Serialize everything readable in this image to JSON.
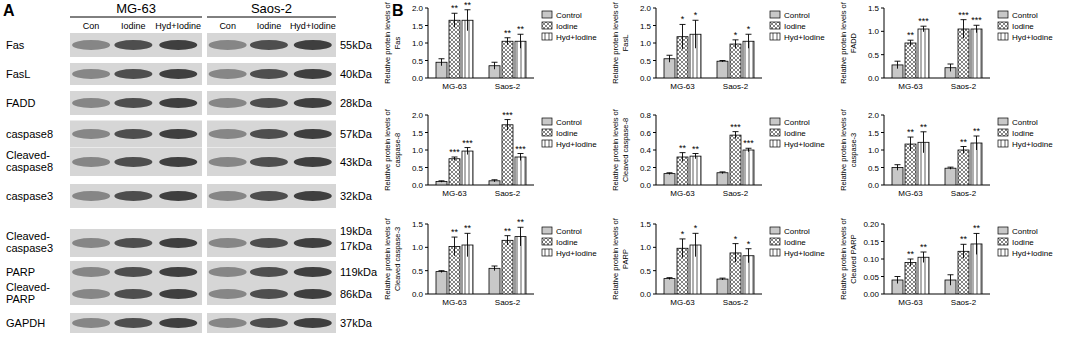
{
  "panel_labels": [
    "A",
    "B"
  ],
  "blot": {
    "cell_lines": [
      "MG-63",
      "Saos-2"
    ],
    "lanes": [
      "Con",
      "Iodine",
      "Hyd+Iodine"
    ],
    "rows": [
      {
        "label": [
          "Fas"
        ],
        "kda": [
          "55kDa"
        ]
      },
      {
        "label": [
          "FasL"
        ],
        "kda": [
          "40kDa"
        ]
      },
      {
        "label": [
          "FADD"
        ],
        "kda": [
          "28kDa"
        ]
      },
      {
        "label": [
          "caspase8"
        ],
        "kda": [
          "57kDa"
        ]
      },
      {
        "label": [
          "Cleaved-",
          "caspase8"
        ],
        "kda": [
          "43kDa"
        ]
      },
      {
        "label": [
          "caspase3"
        ],
        "kda": [
          "32kDa"
        ]
      },
      {
        "label": [
          "Cleaved-",
          "caspase3"
        ],
        "kda": [
          "19kDa",
          "17kDa"
        ]
      },
      {
        "label": [
          "PARP"
        ],
        "kda": [
          "119kDa"
        ]
      },
      {
        "label": [
          "Cleaved-",
          "PARP"
        ],
        "kda": [
          "86kDa"
        ]
      },
      {
        "label": [
          "GAPDH"
        ],
        "kda": [
          "37kDa"
        ]
      }
    ]
  },
  "chart_data": [
    {
      "type": "bar",
      "ylabel": [
        "Relative protein levels of",
        "Fas"
      ],
      "categories": [
        "MG-63",
        "Saos-2"
      ],
      "series": [
        {
          "name": "Control",
          "color": "#c8c8c8",
          "values": [
            0.45,
            0.35
          ],
          "errors": [
            0.1,
            0.1
          ],
          "significance": [
            null,
            null
          ]
        },
        {
          "name": "Iodine",
          "color": "#ffffff",
          "values": [
            1.65,
            1.05
          ],
          "errors": [
            0.2,
            0.1
          ],
          "significance": [
            "**",
            "**"
          ]
        },
        {
          "name": "Hyd+Iodine",
          "color": "#ffffff",
          "values": [
            1.65,
            1.05
          ],
          "errors": [
            0.3,
            0.2
          ],
          "significance": [
            "**",
            "**"
          ]
        }
      ],
      "ylim": [
        0,
        2
      ],
      "yticks": [
        {
          "value": 0,
          "label": "0.0"
        },
        {
          "value": 0.5,
          "label": "0.5"
        },
        {
          "value": 1,
          "label": "1.0"
        },
        {
          "value": 1.5,
          "label": "1.5"
        },
        {
          "value": 2,
          "label": "2.0"
        }
      ],
      "legend": "right"
    },
    {
      "type": "bar",
      "ylabel": [
        "Relative protein levels of",
        "FasL"
      ],
      "categories": [
        "MG-63",
        "Saos-2"
      ],
      "series": [
        {
          "name": "Control",
          "color": "#c8c8c8",
          "values": [
            0.55,
            0.48
          ],
          "errors": [
            0.1,
            0.02
          ],
          "significance": [
            null,
            null
          ]
        },
        {
          "name": "Iodine",
          "color": "#ffffff",
          "values": [
            1.18,
            0.97
          ],
          "errors": [
            0.35,
            0.12
          ],
          "significance": [
            "*",
            "*"
          ]
        },
        {
          "name": "Hyd+Iodine",
          "color": "#ffffff",
          "values": [
            1.25,
            1.05
          ],
          "errors": [
            0.4,
            0.2
          ],
          "significance": [
            "*",
            "*"
          ]
        }
      ],
      "ylim": [
        0,
        2
      ],
      "yticks": [
        {
          "value": 0,
          "label": "0.0"
        },
        {
          "value": 0.5,
          "label": "0.5"
        },
        {
          "value": 1,
          "label": "1.0"
        },
        {
          "value": 1.5,
          "label": "1.5"
        },
        {
          "value": 2,
          "label": "2.0"
        }
      ],
      "legend": "right"
    },
    {
      "type": "bar",
      "ylabel": [
        "Relative protein levels of",
        "FADD"
      ],
      "categories": [
        "MG-63",
        "Saos-2"
      ],
      "series": [
        {
          "name": "Control",
          "color": "#c8c8c8",
          "values": [
            0.28,
            0.22
          ],
          "errors": [
            0.08,
            0.08
          ],
          "significance": [
            null,
            null
          ]
        },
        {
          "name": "Iodine",
          "color": "#ffffff",
          "values": [
            0.75,
            1.05
          ],
          "errors": [
            0.06,
            0.2
          ],
          "significance": [
            "**",
            "***"
          ]
        },
        {
          "name": "Hyd+Iodine",
          "color": "#ffffff",
          "values": [
            1.05,
            1.05
          ],
          "errors": [
            0.06,
            0.08
          ],
          "significance": [
            "***",
            "***"
          ]
        }
      ],
      "ylim": [
        0,
        1.5
      ],
      "yticks": [
        {
          "value": 0,
          "label": "0.0"
        },
        {
          "value": 0.5,
          "label": "0.5"
        },
        {
          "value": 1,
          "label": "1.0"
        },
        {
          "value": 1.5,
          "label": "1.5"
        }
      ],
      "legend": "right"
    },
    {
      "type": "bar",
      "ylabel": [
        "Relative protein levels of",
        "caspase-8"
      ],
      "categories": [
        "MG-63",
        "Saos-2"
      ],
      "series": [
        {
          "name": "Control",
          "color": "#c8c8c8",
          "values": [
            0.1,
            0.12
          ],
          "errors": [
            0.02,
            0.03
          ],
          "significance": [
            null,
            null
          ]
        },
        {
          "name": "Iodine",
          "color": "#ffffff",
          "values": [
            0.75,
            1.72
          ],
          "errors": [
            0.05,
            0.15
          ],
          "significance": [
            "***",
            "***"
          ]
        },
        {
          "name": "Hyd+Iodine",
          "color": "#ffffff",
          "values": [
            0.97,
            0.8
          ],
          "errors": [
            0.1,
            0.1
          ],
          "significance": [
            "***",
            "***"
          ]
        }
      ],
      "ylim": [
        0,
        2
      ],
      "yticks": [
        {
          "value": 0,
          "label": "0.0"
        },
        {
          "value": 0.5,
          "label": "0.5"
        },
        {
          "value": 1,
          "label": "1.0"
        },
        {
          "value": 1.5,
          "label": "1.5"
        },
        {
          "value": 2,
          "label": "2.0"
        }
      ],
      "legend": "right"
    },
    {
      "type": "bar",
      "ylabel": [
        "Relative protein levels of",
        "Cleaved caspase-8"
      ],
      "categories": [
        "MG-63",
        "Saos-2"
      ],
      "series": [
        {
          "name": "Control",
          "color": "#c8c8c8",
          "values": [
            0.13,
            0.14
          ],
          "errors": [
            0.01,
            0.01
          ],
          "significance": [
            null,
            null
          ]
        },
        {
          "name": "Iodine",
          "color": "#ffffff",
          "values": [
            0.32,
            0.57
          ],
          "errors": [
            0.05,
            0.04
          ],
          "significance": [
            "**",
            "***"
          ]
        },
        {
          "name": "Hyd+Iodine",
          "color": "#ffffff",
          "values": [
            0.33,
            0.4
          ],
          "errors": [
            0.03,
            0.02
          ],
          "significance": [
            "**",
            "***"
          ]
        }
      ],
      "ylim": [
        0,
        0.8
      ],
      "yticks": [
        {
          "value": 0,
          "label": "0.0"
        },
        {
          "value": 0.2,
          "label": "0.2"
        },
        {
          "value": 0.4,
          "label": "0.4"
        },
        {
          "value": 0.6,
          "label": "0.6"
        },
        {
          "value": 0.8,
          "label": "0.8"
        }
      ],
      "legend": "right"
    },
    {
      "type": "bar",
      "ylabel": [
        "Relative protein levels of",
        "caspase-3"
      ],
      "categories": [
        "MG-63",
        "Saos-2"
      ],
      "series": [
        {
          "name": "Control",
          "color": "#c8c8c8",
          "values": [
            0.5,
            0.48
          ],
          "errors": [
            0.08,
            0.03
          ],
          "significance": [
            null,
            null
          ]
        },
        {
          "name": "Iodine",
          "color": "#ffffff",
          "values": [
            1.17,
            1.0
          ],
          "errors": [
            0.2,
            0.1
          ],
          "significance": [
            "**",
            "**"
          ]
        },
        {
          "name": "Hyd+Iodine",
          "color": "#ffffff",
          "values": [
            1.22,
            1.2
          ],
          "errors": [
            0.3,
            0.2
          ],
          "significance": [
            "**",
            "**"
          ]
        }
      ],
      "ylim": [
        0,
        2
      ],
      "yticks": [
        {
          "value": 0,
          "label": "0.0"
        },
        {
          "value": 0.5,
          "label": "0.5"
        },
        {
          "value": 1,
          "label": "1.0"
        },
        {
          "value": 1.5,
          "label": "1.5"
        },
        {
          "value": 2,
          "label": "2.0"
        }
      ],
      "legend": "right"
    },
    {
      "type": "bar",
      "ylabel": [
        "Relative protein levels of",
        "Cleaved caspase-3"
      ],
      "categories": [
        "MG-63",
        "Saos-2"
      ],
      "series": [
        {
          "name": "Control",
          "color": "#c8c8c8",
          "values": [
            0.48,
            0.55
          ],
          "errors": [
            0.02,
            0.05
          ],
          "significance": [
            null,
            null
          ]
        },
        {
          "name": "Iodine",
          "color": "#ffffff",
          "values": [
            1.02,
            1.15
          ],
          "errors": [
            0.2,
            0.1
          ],
          "significance": [
            "**",
            "**"
          ]
        },
        {
          "name": "Hyd+Iodine",
          "color": "#ffffff",
          "values": [
            1.05,
            1.23
          ],
          "errors": [
            0.25,
            0.2
          ],
          "significance": [
            "**",
            "**"
          ]
        }
      ],
      "ylim": [
        0,
        1.5
      ],
      "yticks": [
        {
          "value": 0,
          "label": "0.0"
        },
        {
          "value": 0.5,
          "label": "0.5"
        },
        {
          "value": 1,
          "label": "1.0"
        },
        {
          "value": 1.5,
          "label": "1.5"
        }
      ],
      "legend": "right"
    },
    {
      "type": "bar",
      "ylabel": [
        "Relative protein levels of",
        "PARP"
      ],
      "categories": [
        "MG-63",
        "Saos-2"
      ],
      "series": [
        {
          "name": "Control",
          "color": "#c8c8c8",
          "values": [
            0.33,
            0.32
          ],
          "errors": [
            0.02,
            0.02
          ],
          "significance": [
            null,
            null
          ]
        },
        {
          "name": "Iodine",
          "color": "#ffffff",
          "values": [
            0.98,
            0.88
          ],
          "errors": [
            0.2,
            0.2
          ],
          "significance": [
            "*",
            "*"
          ]
        },
        {
          "name": "Hyd+Iodine",
          "color": "#ffffff",
          "values": [
            1.05,
            0.82
          ],
          "errors": [
            0.25,
            0.15
          ],
          "significance": [
            "*",
            "*"
          ]
        }
      ],
      "ylim": [
        0,
        1.5
      ],
      "yticks": [
        {
          "value": 0,
          "label": "0.0"
        },
        {
          "value": 0.5,
          "label": "0.5"
        },
        {
          "value": 1,
          "label": "1.0"
        },
        {
          "value": 1.5,
          "label": "1.5"
        }
      ],
      "legend": "right"
    },
    {
      "type": "bar",
      "ylabel": [
        "Relative protein levels of",
        "Cleaved PARP"
      ],
      "categories": [
        "MG-63",
        "Saos-2"
      ],
      "series": [
        {
          "name": "Control",
          "color": "#c8c8c8",
          "values": [
            0.04,
            0.04
          ],
          "errors": [
            0.01,
            0.015
          ],
          "significance": [
            null,
            null
          ]
        },
        {
          "name": "Iodine",
          "color": "#ffffff",
          "values": [
            0.09,
            0.122
          ],
          "errors": [
            0.01,
            0.02
          ],
          "significance": [
            "**",
            "**"
          ]
        },
        {
          "name": "Hyd+Iodine",
          "color": "#ffffff",
          "values": [
            0.105,
            0.143
          ],
          "errors": [
            0.015,
            0.03
          ],
          "significance": [
            "**",
            "**"
          ]
        }
      ],
      "ylim": [
        0,
        0.2
      ],
      "yticks": [
        {
          "value": 0,
          "label": "0.00"
        },
        {
          "value": 0.05,
          "label": "0.05"
        },
        {
          "value": 0.1,
          "label": "0.10"
        },
        {
          "value": 0.15,
          "label": "0.15"
        },
        {
          "value": 0.2,
          "label": "0.20"
        }
      ],
      "legend": "right"
    }
  ]
}
